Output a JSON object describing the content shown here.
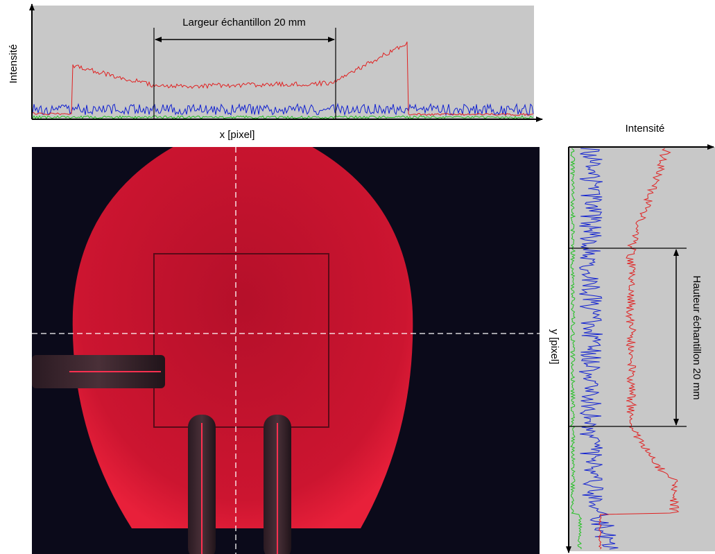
{
  "top_plot": {
    "y_label": "Intensité",
    "x_label": "x [pixel]",
    "annotation": "Largeur échantillon 20 mm"
  },
  "side_plot": {
    "x_label": "Intensité",
    "y_label": "y [pixel]",
    "annotation": "Hauteur échantillon 20 mm"
  }
}
